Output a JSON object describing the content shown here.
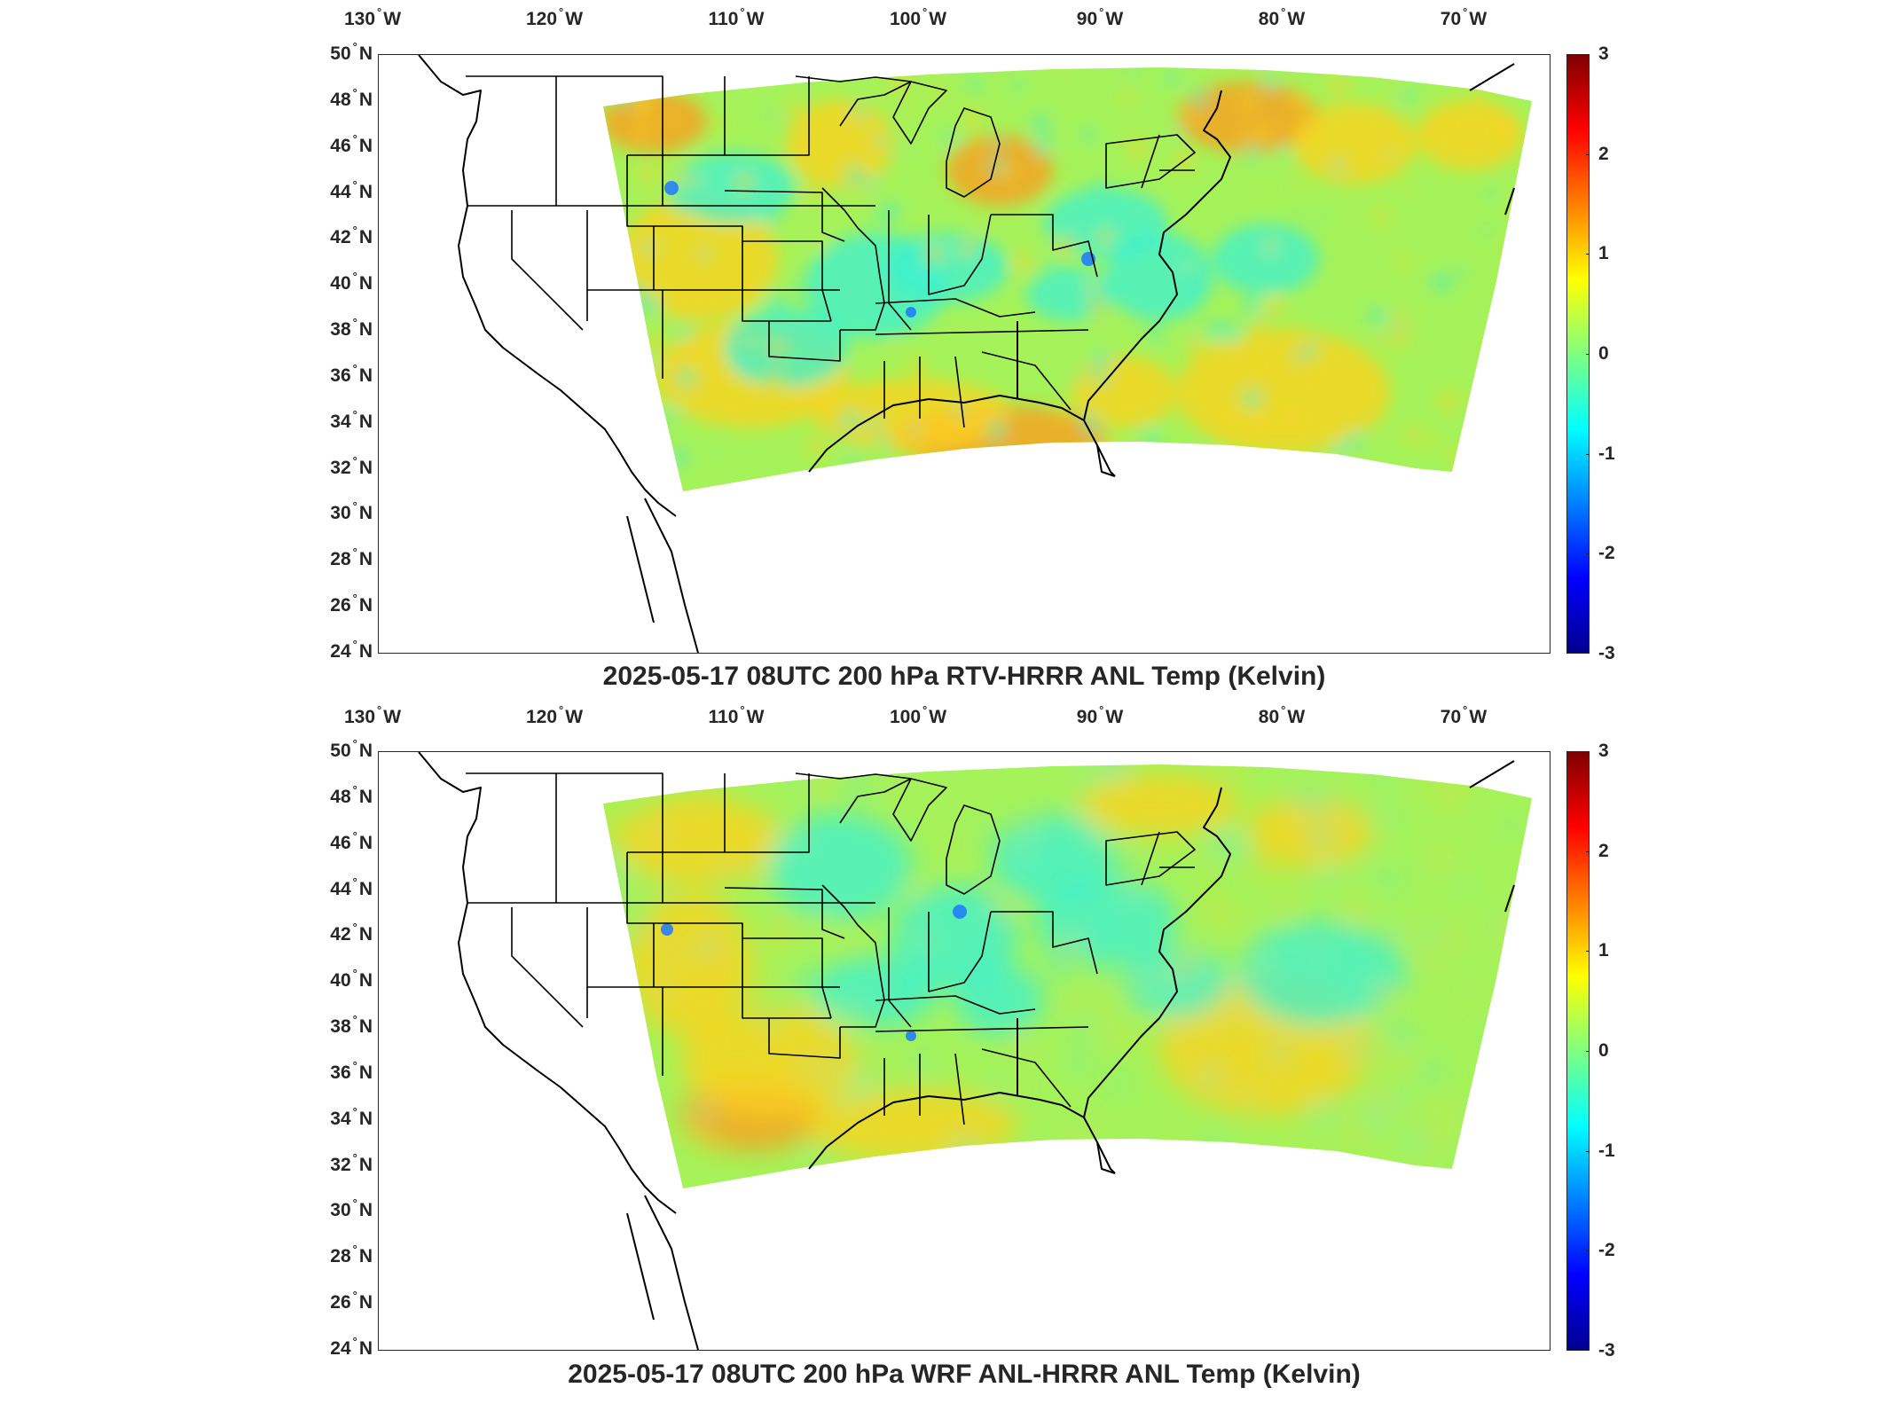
{
  "panels": [
    {
      "title": "2025-05-17 08UTC 200 hPa RTV-HRRR ANL Temp (Kelvin)",
      "variant": "rtv"
    },
    {
      "title": "2025-05-17 08UTC 200 hPa WRF ANL-HRRR ANL Temp (Kelvin)",
      "variant": "wrf"
    }
  ],
  "lon_ticks": [
    {
      "num": "130",
      "hemi": "W"
    },
    {
      "num": "120",
      "hemi": "W"
    },
    {
      "num": "110",
      "hemi": "W"
    },
    {
      "num": "100",
      "hemi": "W"
    },
    {
      "num": "90",
      "hemi": "W"
    },
    {
      "num": "80",
      "hemi": "W"
    },
    {
      "num": "70",
      "hemi": "W"
    }
  ],
  "lat_ticks": [
    {
      "num": "50",
      "hemi": "N"
    },
    {
      "num": "48",
      "hemi": "N"
    },
    {
      "num": "46",
      "hemi": "N"
    },
    {
      "num": "44",
      "hemi": "N"
    },
    {
      "num": "42",
      "hemi": "N"
    },
    {
      "num": "40",
      "hemi": "N"
    },
    {
      "num": "38",
      "hemi": "N"
    },
    {
      "num": "36",
      "hemi": "N"
    },
    {
      "num": "34",
      "hemi": "N"
    },
    {
      "num": "32",
      "hemi": "N"
    },
    {
      "num": "30",
      "hemi": "N"
    },
    {
      "num": "28",
      "hemi": "N"
    },
    {
      "num": "26",
      "hemi": "N"
    },
    {
      "num": "24",
      "hemi": "N"
    }
  ],
  "degree_symbol": "°",
  "colorbar": {
    "min": -3,
    "max": 3,
    "ticks": [
      "3",
      "2",
      "1",
      "0",
      "-1",
      "-2",
      "-3"
    ],
    "colormap": "jet"
  },
  "colors": {
    "axis": "#262626",
    "background": "#ffffff",
    "field_base": "#a6f25a",
    "warm": "#ffd21e",
    "hot": "#ff9b1e",
    "cool": "#3cf0d2",
    "cold": "#1e78ff"
  }
}
